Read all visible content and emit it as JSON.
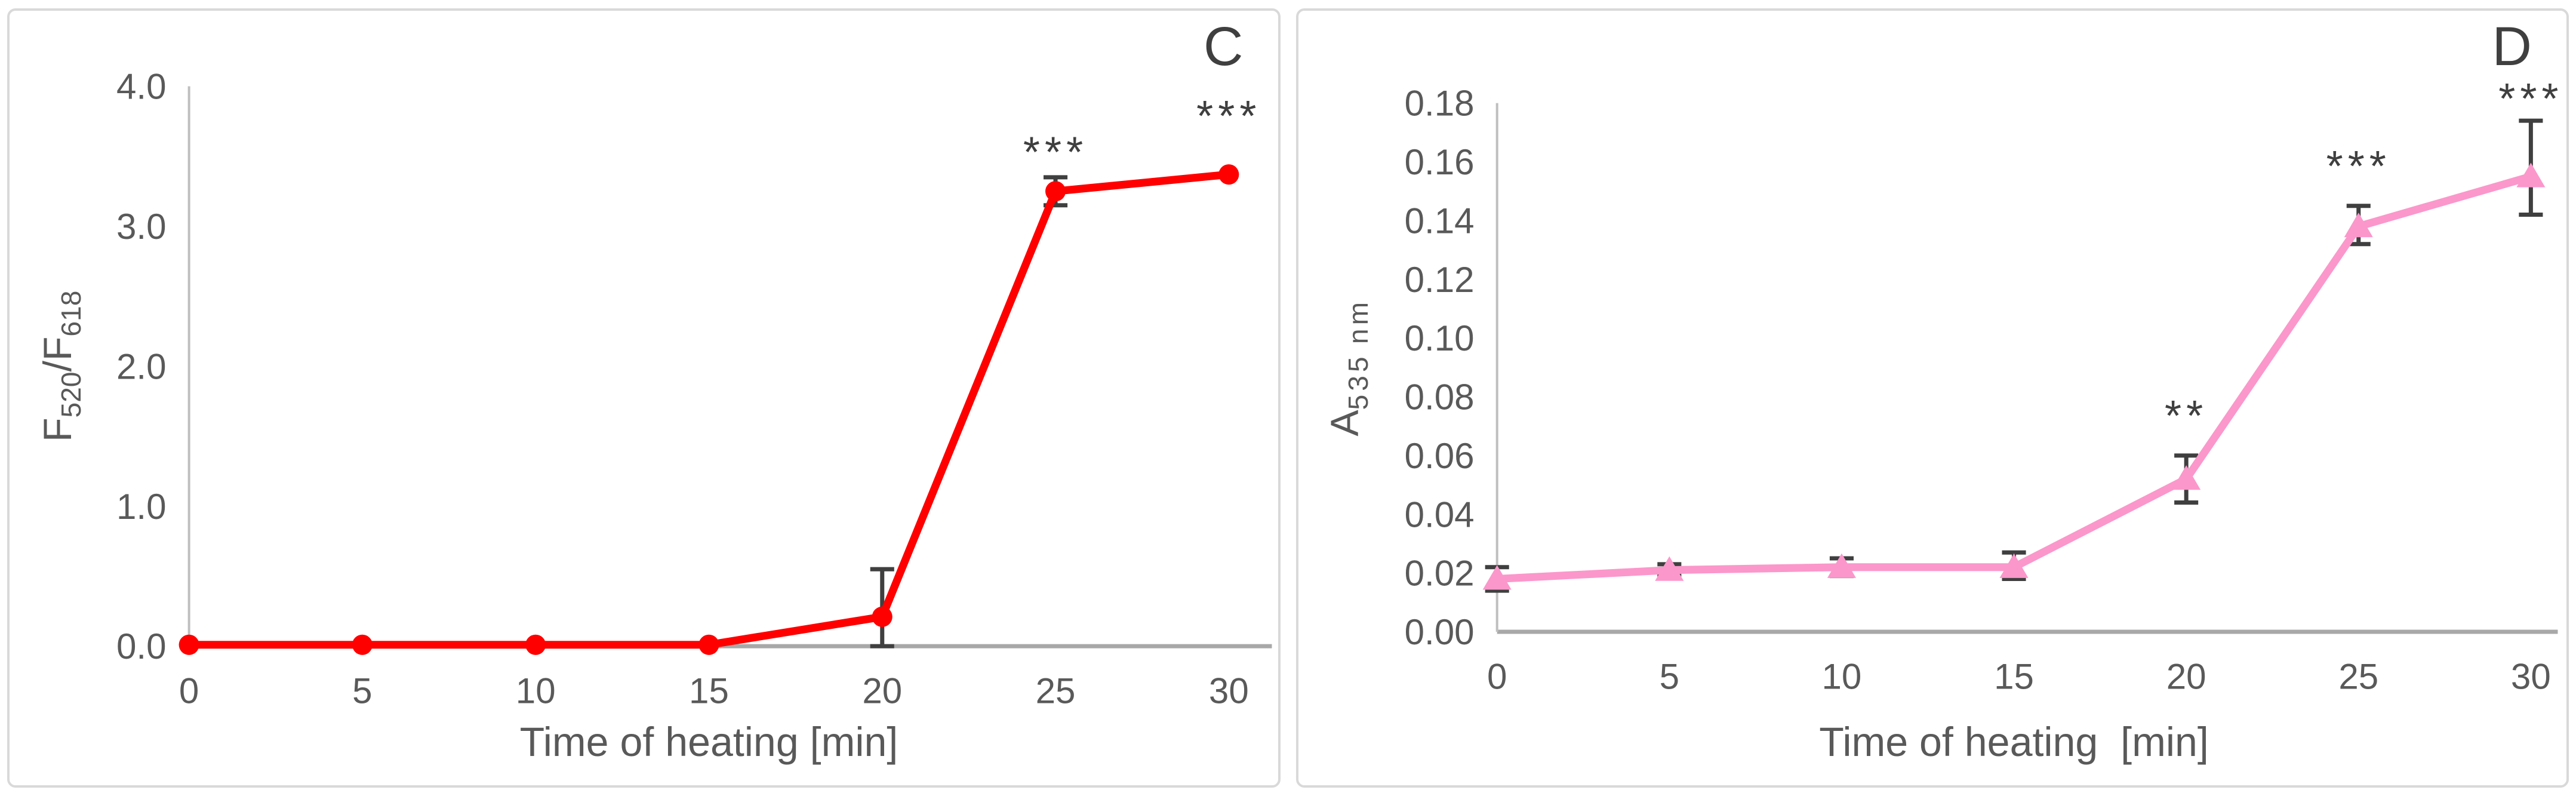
{
  "colors": {
    "axis_line": "#bfbfbf",
    "baseline": "#a8a8a8",
    "tick_text": "#595959",
    "error_bar": "#3f3f3f",
    "panel_border": "#d9d9d9",
    "panel_letter": "#3f3f3f",
    "series_red": "#ff0000",
    "series_pink": "#fb97cb"
  },
  "chart_data": [
    {
      "type": "line",
      "panel_letter": "C",
      "marker": "circle",
      "series_color": "#ff0000",
      "x": [
        0,
        5,
        10,
        15,
        20,
        25,
        30
      ],
      "values": [
        0.01,
        0.01,
        0.01,
        0.01,
        0.21,
        3.25,
        3.37
      ],
      "error_up": [
        0,
        0,
        0,
        0,
        0.34,
        0.1,
        0
      ],
      "error_down": [
        0,
        0,
        0,
        0,
        0.21,
        0.1,
        0
      ],
      "annotations": [
        {
          "x": 25,
          "y": 3.56,
          "text": "***"
        },
        {
          "x": 30,
          "y": 3.82,
          "text": "***"
        }
      ],
      "xlabel": "Time of heating [min]",
      "ylabel_parts": [
        {
          "text": "F"
        },
        {
          "text": "520",
          "sub": true
        },
        {
          "text": "/F"
        },
        {
          "text": "618",
          "sub": true
        }
      ],
      "xticks": [
        "0",
        "5",
        "10",
        "15",
        "20",
        "25",
        "30"
      ],
      "yticks": [
        "0.0",
        "1.0",
        "2.0",
        "3.0",
        "4.0"
      ],
      "xlim": [
        0,
        30
      ],
      "ylim": [
        0,
        4.0
      ],
      "grid": false,
      "legend": null
    },
    {
      "type": "line",
      "panel_letter": "D",
      "marker": "triangle",
      "series_color": "#fb97cb",
      "x": [
        0,
        5,
        10,
        15,
        20,
        25,
        30
      ],
      "values": [
        0.018,
        0.021,
        0.022,
        0.022,
        0.052,
        0.138,
        0.155
      ],
      "error_up": [
        0.004,
        0.002,
        0.003,
        0.005,
        0.008,
        0.007,
        0.019
      ],
      "error_down": [
        0.004,
        0.002,
        0.003,
        0.004,
        0.008,
        0.006,
        0.013
      ],
      "annotations": [
        {
          "x": 20,
          "y": 0.075,
          "text": "**"
        },
        {
          "x": 25,
          "y": 0.16,
          "text": "***"
        },
        {
          "x": 30,
          "y": 0.183,
          "text": "***"
        }
      ],
      "xlabel": "Time of heating  [min]",
      "ylabel_parts": [
        {
          "text": "A"
        },
        {
          "text": "535 nm",
          "sub": true,
          "spacing": 6
        }
      ],
      "xticks": [
        "0",
        "5",
        "10",
        "15",
        "20",
        "25",
        "30"
      ],
      "yticks": [
        "0.00",
        "0.02",
        "0.04",
        "0.06",
        "0.08",
        "0.10",
        "0.12",
        "0.14",
        "0.16",
        "0.18"
      ],
      "xlim": [
        0,
        30
      ],
      "ylim": [
        0,
        0.18
      ],
      "grid": false,
      "legend": null
    }
  ]
}
